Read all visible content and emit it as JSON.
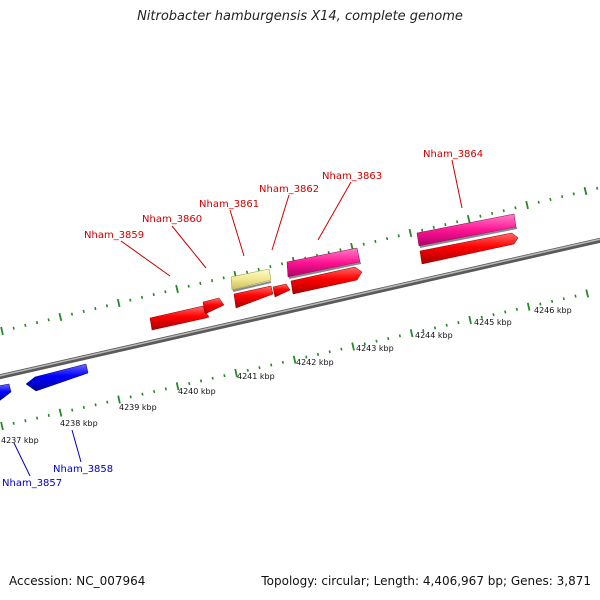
{
  "title": "Nitrobacter hamburgensis X14, complete genome",
  "footer": {
    "accession": "Accession: NC_007964",
    "topology": "Topology: circular; Length: 4,406,967 bp; Genes: 3,871"
  },
  "colors": {
    "forward_gene": "#ff0000",
    "reverse_gene": "#0000ff",
    "pink_feature": "#ff1493",
    "pale_feature": "#f0e68c",
    "tick": "#228b22",
    "backbone": "#7f7f7f",
    "forward_label": "#cc0000",
    "reverse_label": "#0000cc"
  },
  "scale": {
    "unit": "kbp",
    "labels": [
      "4237 kbp",
      "4238 kbp",
      "4239 kbp",
      "4240 kbp",
      "4241 kbp",
      "4242 kbp",
      "4243 kbp",
      "4244 kbp",
      "4245 kbp",
      "4246 kbp"
    ]
  },
  "gene_labels": {
    "forward": [
      "Nham_3859",
      "Nham_3860",
      "Nham_3861",
      "Nham_3862",
      "Nham_3863",
      "Nham_3864"
    ],
    "reverse": [
      "Nham_3857",
      "Nham_3858"
    ]
  }
}
